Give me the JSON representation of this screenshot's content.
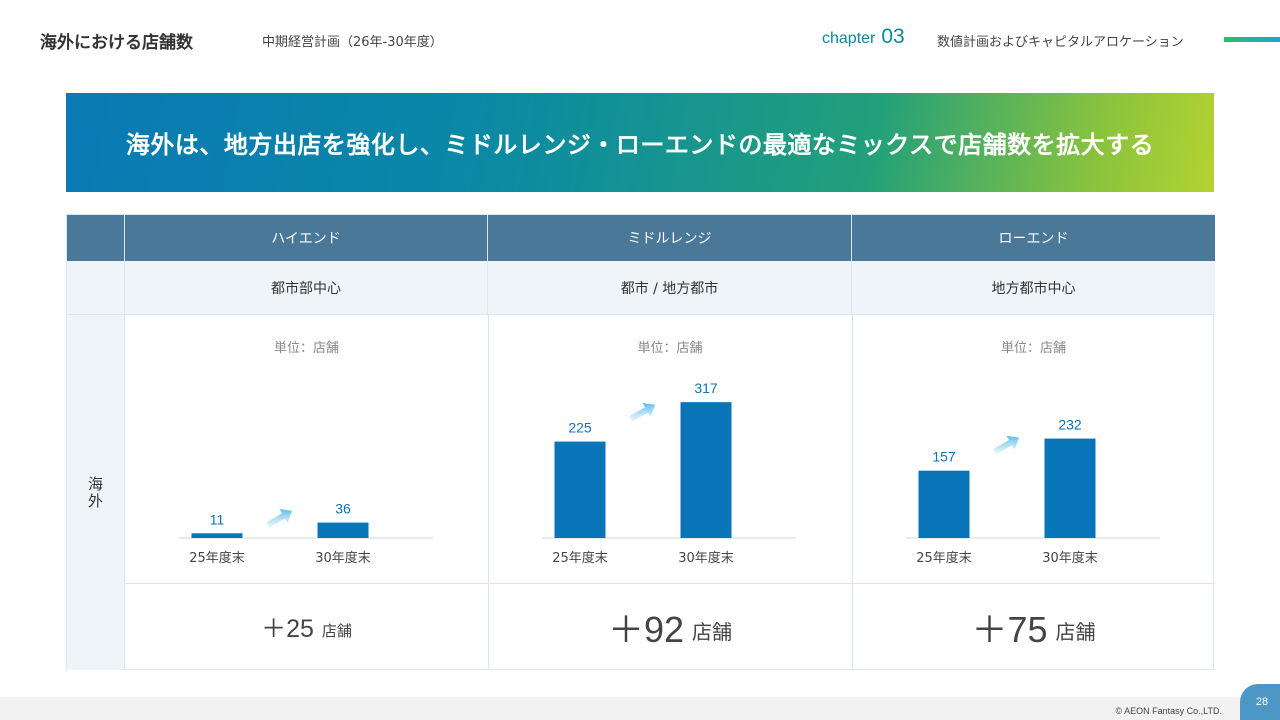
{
  "header": {
    "title": "海外における店舗数",
    "subtitle": "中期経営計画（26年-30年度）",
    "chapter_word": "chapter",
    "chapter_num": "03",
    "section": "数値計画およびキャピタルアロケーション"
  },
  "banner": {
    "text": "海外は、地方出店を強化し、ミドルレンジ・ローエンドの最適なミックスで店舗数を拡大する"
  },
  "table": {
    "row_label": "海外",
    "columns": [
      {
        "name": "ハイエンド",
        "sub": "都市部中心",
        "increase": "＋25",
        "increase_suffix": "店舗"
      },
      {
        "name": "ミドルレンジ",
        "sub": "都市 / 地方都市",
        "increase": "＋92",
        "increase_suffix": "店舗"
      },
      {
        "name": "ローエンド",
        "sub": "地方都市中心",
        "increase": "＋75",
        "increase_suffix": "店舗"
      }
    ]
  },
  "chart_data": [
    {
      "type": "bar",
      "unit_label": "単位：店舗",
      "categories": [
        "25年度末",
        "30年度末"
      ],
      "values": [
        11,
        36
      ],
      "ylim": [
        0,
        350
      ],
      "color": "#0a74b8"
    },
    {
      "type": "bar",
      "unit_label": "単位：店舗",
      "categories": [
        "25年度末",
        "30年度末"
      ],
      "values": [
        225,
        317
      ],
      "ylim": [
        0,
        350
      ],
      "color": "#0a74b8"
    },
    {
      "type": "bar",
      "unit_label": "単位：店舗",
      "categories": [
        "25年度末",
        "30年度末"
      ],
      "values": [
        157,
        232
      ],
      "ylim": [
        0,
        350
      ],
      "color": "#0a74b8"
    }
  ],
  "footer": {
    "copyright": "© AEON Fantasy Co.,LTD.",
    "page": "28"
  }
}
